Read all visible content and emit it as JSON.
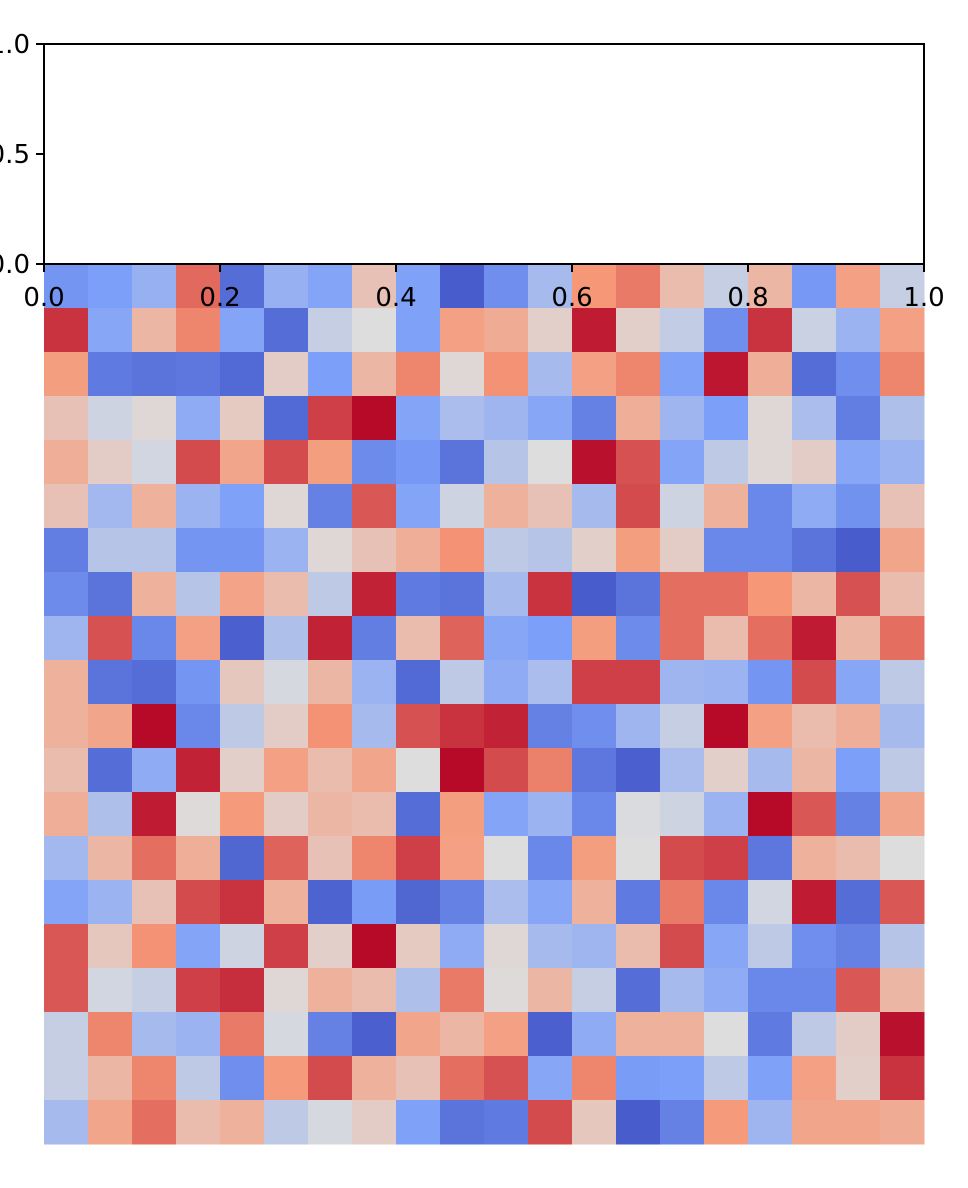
{
  "chart_data": {
    "type": "heatmap",
    "title": "",
    "xlabel": "",
    "ylabel": "",
    "axes": {
      "x_ticks": [
        "0.0",
        "0.2",
        "0.4",
        "0.6",
        "0.8",
        "1.0"
      ],
      "y_ticks": [
        "0.0",
        "0.5",
        "1.0"
      ],
      "xlim": [
        0,
        1
      ],
      "ylim": [
        0,
        1
      ],
      "grid": false
    },
    "heatmap": {
      "colormap": "coolwarm",
      "rows": 20,
      "cols": 20,
      "value_range": [
        0,
        1
      ],
      "values": [
        [
          0.22,
          0.25,
          0.32,
          0.83,
          0.1,
          0.32,
          0.27,
          0.6,
          0.26,
          0.05,
          0.2,
          0.36,
          0.75,
          0.8,
          0.62,
          0.44,
          0.64,
          0.23,
          0.72,
          0.44
        ],
        [
          0.92,
          0.28,
          0.64,
          0.78,
          0.27,
          0.1,
          0.44,
          0.5,
          0.26,
          0.72,
          0.68,
          0.55,
          0.96,
          0.55,
          0.43,
          0.2,
          0.92,
          0.45,
          0.33,
          0.72
        ],
        [
          0.73,
          0.14,
          0.12,
          0.13,
          0.09,
          0.56,
          0.25,
          0.64,
          0.78,
          0.52,
          0.76,
          0.36,
          0.72,
          0.78,
          0.26,
          0.97,
          0.67,
          0.1,
          0.2,
          0.78
        ],
        [
          0.6,
          0.46,
          0.52,
          0.3,
          0.57,
          0.09,
          0.9,
          0.99,
          0.27,
          0.37,
          0.34,
          0.28,
          0.16,
          0.67,
          0.34,
          0.25,
          0.52,
          0.37,
          0.15,
          0.38
        ],
        [
          0.67,
          0.56,
          0.47,
          0.88,
          0.7,
          0.88,
          0.73,
          0.19,
          0.23,
          0.12,
          0.4,
          0.5,
          0.98,
          0.87,
          0.27,
          0.42,
          0.52,
          0.56,
          0.28,
          0.33
        ],
        [
          0.6,
          0.35,
          0.66,
          0.33,
          0.26,
          0.52,
          0.16,
          0.86,
          0.27,
          0.46,
          0.66,
          0.6,
          0.36,
          0.88,
          0.46,
          0.66,
          0.18,
          0.3,
          0.21,
          0.6
        ],
        [
          0.15,
          0.4,
          0.4,
          0.22,
          0.22,
          0.33,
          0.52,
          0.6,
          0.67,
          0.76,
          0.42,
          0.4,
          0.55,
          0.73,
          0.56,
          0.18,
          0.18,
          0.12,
          0.05,
          0.7
        ],
        [
          0.19,
          0.12,
          0.66,
          0.4,
          0.71,
          0.62,
          0.42,
          0.95,
          0.14,
          0.12,
          0.36,
          0.92,
          0.05,
          0.12,
          0.82,
          0.82,
          0.75,
          0.64,
          0.87,
          0.62
        ],
        [
          0.34,
          0.87,
          0.18,
          0.72,
          0.06,
          0.38,
          0.95,
          0.15,
          0.62,
          0.84,
          0.28,
          0.25,
          0.73,
          0.19,
          0.82,
          0.62,
          0.82,
          0.96,
          0.64,
          0.82
        ],
        [
          0.66,
          0.12,
          0.1,
          0.22,
          0.58,
          0.48,
          0.64,
          0.33,
          0.09,
          0.42,
          0.3,
          0.37,
          0.9,
          0.9,
          0.34,
          0.33,
          0.22,
          0.88,
          0.28,
          0.42
        ],
        [
          0.66,
          0.7,
          0.99,
          0.18,
          0.42,
          0.56,
          0.76,
          0.36,
          0.87,
          0.92,
          0.95,
          0.16,
          0.2,
          0.34,
          0.44,
          0.99,
          0.72,
          0.62,
          0.67,
          0.36
        ],
        [
          0.62,
          0.1,
          0.3,
          0.95,
          0.55,
          0.72,
          0.62,
          0.7,
          0.5,
          0.99,
          0.88,
          0.79,
          0.13,
          0.06,
          0.37,
          0.55,
          0.36,
          0.64,
          0.25,
          0.42
        ],
        [
          0.67,
          0.38,
          0.96,
          0.51,
          0.74,
          0.56,
          0.64,
          0.62,
          0.1,
          0.73,
          0.27,
          0.33,
          0.18,
          0.49,
          0.46,
          0.33,
          0.99,
          0.86,
          0.16,
          0.7
        ],
        [
          0.35,
          0.64,
          0.82,
          0.67,
          0.08,
          0.84,
          0.6,
          0.78,
          0.9,
          0.72,
          0.5,
          0.18,
          0.73,
          0.5,
          0.88,
          0.9,
          0.13,
          0.66,
          0.62,
          0.5
        ],
        [
          0.27,
          0.33,
          0.6,
          0.88,
          0.92,
          0.66,
          0.07,
          0.24,
          0.08,
          0.16,
          0.37,
          0.28,
          0.66,
          0.14,
          0.8,
          0.18,
          0.47,
          0.96,
          0.1,
          0.86
        ],
        [
          0.86,
          0.58,
          0.76,
          0.27,
          0.46,
          0.9,
          0.55,
          0.99,
          0.57,
          0.3,
          0.52,
          0.36,
          0.34,
          0.62,
          0.88,
          0.28,
          0.42,
          0.2,
          0.16,
          0.4
        ],
        [
          0.86,
          0.47,
          0.44,
          0.9,
          0.93,
          0.52,
          0.66,
          0.62,
          0.38,
          0.8,
          0.51,
          0.64,
          0.44,
          0.1,
          0.36,
          0.3,
          0.18,
          0.18,
          0.86,
          0.64
        ],
        [
          0.44,
          0.78,
          0.36,
          0.33,
          0.8,
          0.48,
          0.16,
          0.06,
          0.7,
          0.64,
          0.72,
          0.06,
          0.3,
          0.66,
          0.66,
          0.5,
          0.14,
          0.42,
          0.56,
          0.98
        ],
        [
          0.44,
          0.64,
          0.78,
          0.42,
          0.2,
          0.74,
          0.88,
          0.66,
          0.6,
          0.82,
          0.87,
          0.28,
          0.78,
          0.24,
          0.25,
          0.42,
          0.26,
          0.72,
          0.55,
          0.92
        ],
        [
          0.36,
          0.7,
          0.82,
          0.62,
          0.66,
          0.42,
          0.48,
          0.56,
          0.26,
          0.12,
          0.14,
          0.88,
          0.58,
          0.05,
          0.16,
          0.74,
          0.34,
          0.7,
          0.7,
          0.68
        ]
      ]
    }
  }
}
